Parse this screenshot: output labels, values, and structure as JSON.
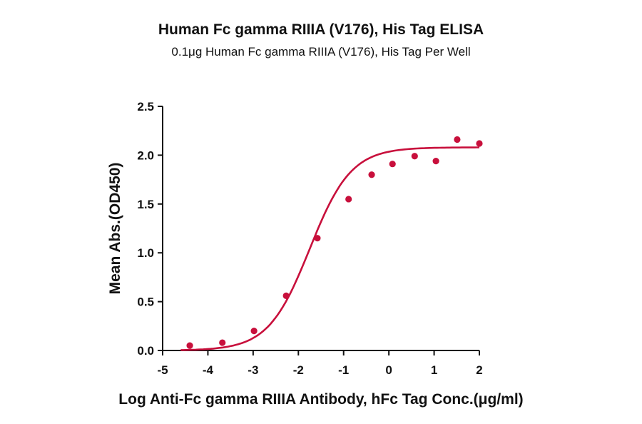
{
  "chart_data": {
    "type": "scatter",
    "title": "Human Fc gamma RIIIA (V176), His Tag ELISA",
    "subtitle": "0.1μg Human Fc gamma RIIIA (V176), His Tag Per Well",
    "xlabel": "Log Anti-Fc gamma RIIIA Antibody, hFc Tag Conc.(μg/ml)",
    "ylabel": "Mean Abs.(OD450)",
    "xlim": [
      -5,
      2
    ],
    "ylim": [
      0,
      2.5
    ],
    "xticks": [
      "-5",
      "-4",
      "-3",
      "-2",
      "-1",
      "0",
      "1",
      "2"
    ],
    "yticks": [
      "0.0",
      "0.5",
      "1.0",
      "1.5",
      "2.0",
      "2.5"
    ],
    "grid": false,
    "color": "#c8103c",
    "series": [
      {
        "name": "Mean Abs.",
        "x": [
          -4.4,
          -3.68,
          -2.98,
          -2.27,
          -1.58,
          -0.89,
          -0.38,
          0.08,
          0.57,
          1.04,
          1.51,
          2.0
        ],
        "y": [
          0.05,
          0.08,
          0.2,
          0.56,
          1.15,
          1.55,
          1.8,
          1.91,
          1.99,
          1.94,
          2.16,
          2.12
        ]
      }
    ],
    "fit": {
      "model": "4PL",
      "bottom": 0.0,
      "top": 2.08,
      "logEC50": -1.75,
      "hill": 0.95
    }
  }
}
